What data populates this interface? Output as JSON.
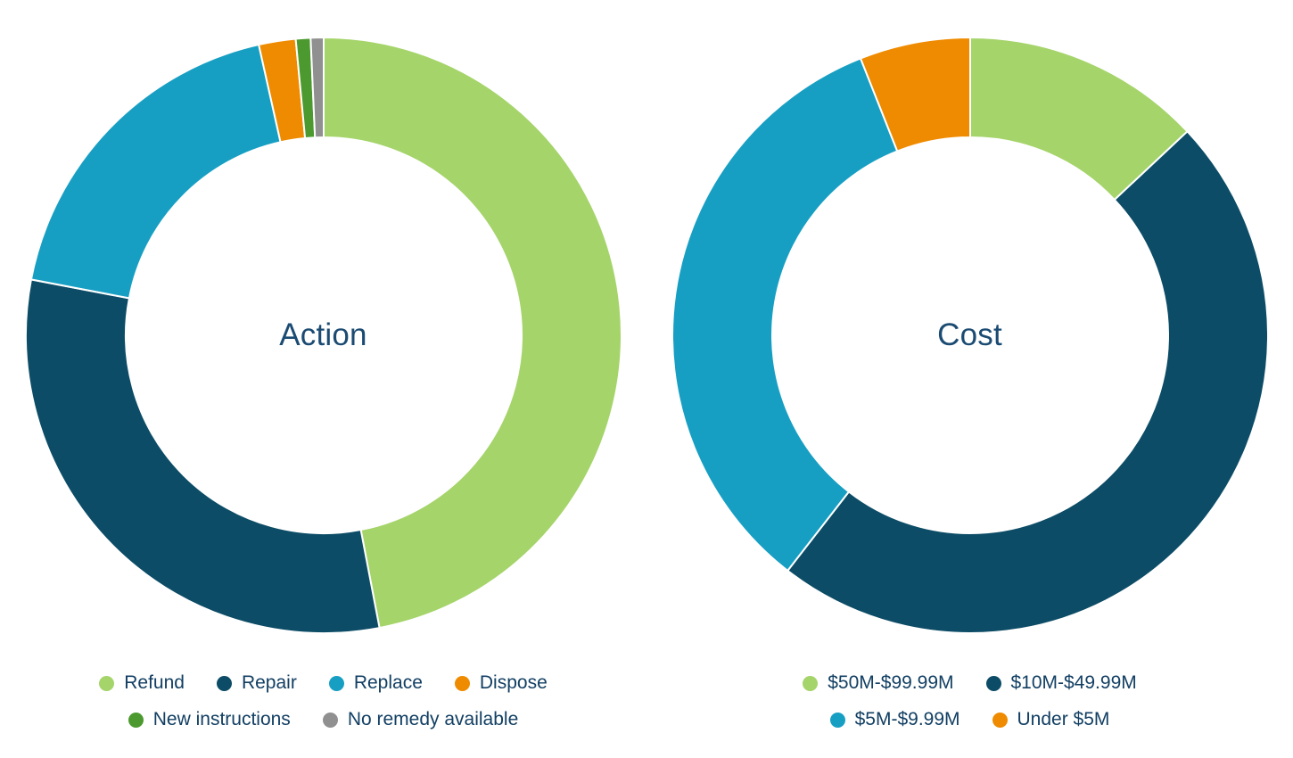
{
  "page": {
    "background": "#ffffff"
  },
  "styles": {
    "title_color": "#1b4b72",
    "legend_text_color": "#123f63",
    "segment_gap_color": "#ffffff",
    "inner_radius_ratio": 0.665
  },
  "chart_data": [
    {
      "type": "pie",
      "variant": "donut",
      "title": "Action",
      "start_angle_deg": 0,
      "direction": "clockwise",
      "unit": "percent",
      "legend_position": "bottom",
      "segments": [
        {
          "label": "Refund",
          "value": 47.0,
          "color": "#a5d46a"
        },
        {
          "label": "Repair",
          "value": 31.0,
          "color": "#0c4c66"
        },
        {
          "label": "Replace",
          "value": 18.5,
          "color": "#179fc3"
        },
        {
          "label": "Dispose",
          "value": 2.0,
          "color": "#ef8b00"
        },
        {
          "label": "New instructions",
          "value": 0.8,
          "color": "#4c9a2f"
        },
        {
          "label": "No remedy available",
          "value": 0.7,
          "color": "#909090"
        }
      ],
      "legend_rows": [
        [
          0,
          1,
          2,
          3
        ],
        [
          4,
          5
        ]
      ]
    },
    {
      "type": "pie",
      "variant": "donut",
      "title": "Cost",
      "start_angle_deg": 0,
      "direction": "clockwise",
      "unit": "percent",
      "legend_position": "bottom",
      "segments": [
        {
          "label": "$50M-$99.99M",
          "value": 13.0,
          "color": "#a5d46a"
        },
        {
          "label": "$10M-$49.99M",
          "value": 47.5,
          "color": "#0c4c66"
        },
        {
          "label": "$5M-$9.99M",
          "value": 33.5,
          "color": "#179fc3"
        },
        {
          "label": "Under $5M",
          "value": 6.0,
          "color": "#ef8b00"
        }
      ],
      "legend_rows": [
        [
          0,
          1
        ],
        [
          2,
          3
        ]
      ]
    }
  ]
}
